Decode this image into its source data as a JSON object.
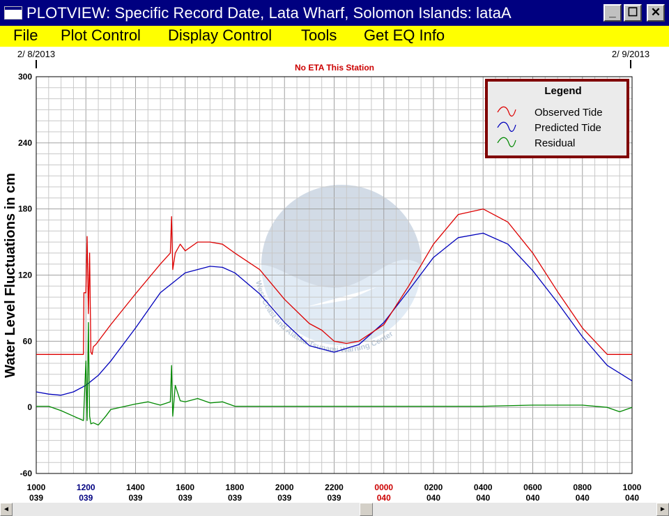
{
  "window": {
    "title": "PLOTVIEW: Specific Record Date, Lata Wharf, Solomon Islands: lataA",
    "buttons": {
      "minimize": "_",
      "maximize": "☐",
      "close": "✕"
    }
  },
  "menu": [
    "File",
    "Plot Control",
    "Display Control",
    "Tools",
    "Get EQ Info"
  ],
  "scrollbar": {
    "left_arrow": "◄",
    "right_arrow": "►",
    "position": 0.55
  },
  "colors": {
    "observed": "#dd0000",
    "predicted": "#0000bb",
    "residual": "#008800",
    "legend_border": "#800000",
    "legend_bg": "#ebebeb",
    "note": "#cc0000",
    "title_bar": "#000080",
    "menu_bar": "#ffff00"
  },
  "chart_data": {
    "type": "line",
    "date_start": "2/ 8/2013",
    "date_end": "2/ 9/2013",
    "note": "No ETA This Station",
    "ylabel": "Water Level Fluctuations in cm",
    "ylim": [
      -60,
      300
    ],
    "yticks": [
      "300",
      "240",
      "180",
      "120",
      "60",
      "0",
      "-60"
    ],
    "xlim": [
      "1000 039",
      "1000 040"
    ],
    "xticks": [
      {
        "time": "1000",
        "day": "039",
        "color": "#000000"
      },
      {
        "time": "1200",
        "day": "039",
        "color": "#000080"
      },
      {
        "time": "1400",
        "day": "039",
        "color": "#000000"
      },
      {
        "time": "1600",
        "day": "039",
        "color": "#000000"
      },
      {
        "time": "1800",
        "day": "039",
        "color": "#000000"
      },
      {
        "time": "2000",
        "day": "039",
        "color": "#000000"
      },
      {
        "time": "2200",
        "day": "039",
        "color": "#000000"
      },
      {
        "time": "0000",
        "day": "040",
        "color": "#cc0000"
      },
      {
        "time": "0200",
        "day": "040",
        "color": "#000000"
      },
      {
        "time": "0400",
        "day": "040",
        "color": "#000000"
      },
      {
        "time": "0600",
        "day": "040",
        "color": "#000000"
      },
      {
        "time": "0800",
        "day": "040",
        "color": "#000000"
      },
      {
        "time": "1000",
        "day": "040",
        "color": "#000000"
      }
    ],
    "grid": true,
    "legend": {
      "title": "Legend",
      "position": "top-right",
      "entries": [
        "Observed Tide",
        "Predicted Tide",
        "Residual"
      ]
    },
    "watermark_text": "West Coast and Alaska Tsunami Warning Center",
    "series": [
      {
        "name": "Predicted Tide",
        "x_hours": [
          0,
          0.5,
          1,
          1.5,
          2,
          2.5,
          3,
          4,
          5,
          6,
          7,
          7.5,
          8,
          9,
          10,
          11,
          12,
          13,
          14,
          15,
          16,
          17,
          18,
          19,
          20,
          21,
          22,
          23,
          24
        ],
        "values": [
          14,
          12,
          11,
          14,
          20,
          29,
          42,
          72,
          104,
          122,
          128,
          127,
          122,
          103,
          77,
          56,
          50,
          57,
          77,
          106,
          136,
          154,
          158,
          148,
          124,
          95,
          64,
          38,
          24
        ]
      },
      {
        "name": "Observed Tide",
        "x_hours": [
          0,
          1.9,
          1.92,
          2,
          2.05,
          2.1,
          2.15,
          2.2,
          2.25,
          2.3,
          2.4,
          2.6,
          3,
          4,
          5,
          5.4,
          5.45,
          5.5,
          5.6,
          5.8,
          6,
          6.5,
          7,
          7.5,
          8,
          9,
          10,
          11,
          11.5,
          12,
          12.5,
          13,
          14,
          15,
          16,
          17,
          18,
          19,
          20,
          21,
          22,
          23,
          23.5,
          24
        ],
        "values": [
          48,
          48,
          104,
          104,
          155,
          85,
          140,
          50,
          48,
          55,
          57,
          63,
          75,
          103,
          130,
          140,
          173,
          125,
          140,
          148,
          142,
          150,
          150,
          148,
          140,
          125,
          98,
          76,
          70,
          60,
          58,
          60,
          75,
          110,
          148,
          175,
          180,
          168,
          140,
          105,
          72,
          48,
          48,
          48
        ]
      },
      {
        "name": "Residual",
        "x_hours": [
          0,
          0.5,
          1,
          1.5,
          1.9,
          2,
          2.05,
          2.1,
          2.15,
          2.2,
          2.3,
          2.5,
          2.8,
          3,
          4,
          4.5,
          5,
          5.4,
          5.45,
          5.5,
          5.6,
          5.8,
          6,
          6.5,
          7,
          7.5,
          8,
          10,
          12,
          14,
          16,
          18,
          20,
          22,
          23,
          23.5,
          24
        ],
        "values": [
          1,
          1,
          -3,
          -8,
          -12,
          42,
          -12,
          77,
          -8,
          -15,
          -14,
          -16,
          -8,
          -2,
          3,
          5,
          2,
          5,
          38,
          -8,
          20,
          6,
          5,
          8,
          4,
          5,
          1,
          1,
          1,
          1,
          1,
          1,
          2,
          2,
          0,
          -4,
          0
        ]
      }
    ]
  }
}
